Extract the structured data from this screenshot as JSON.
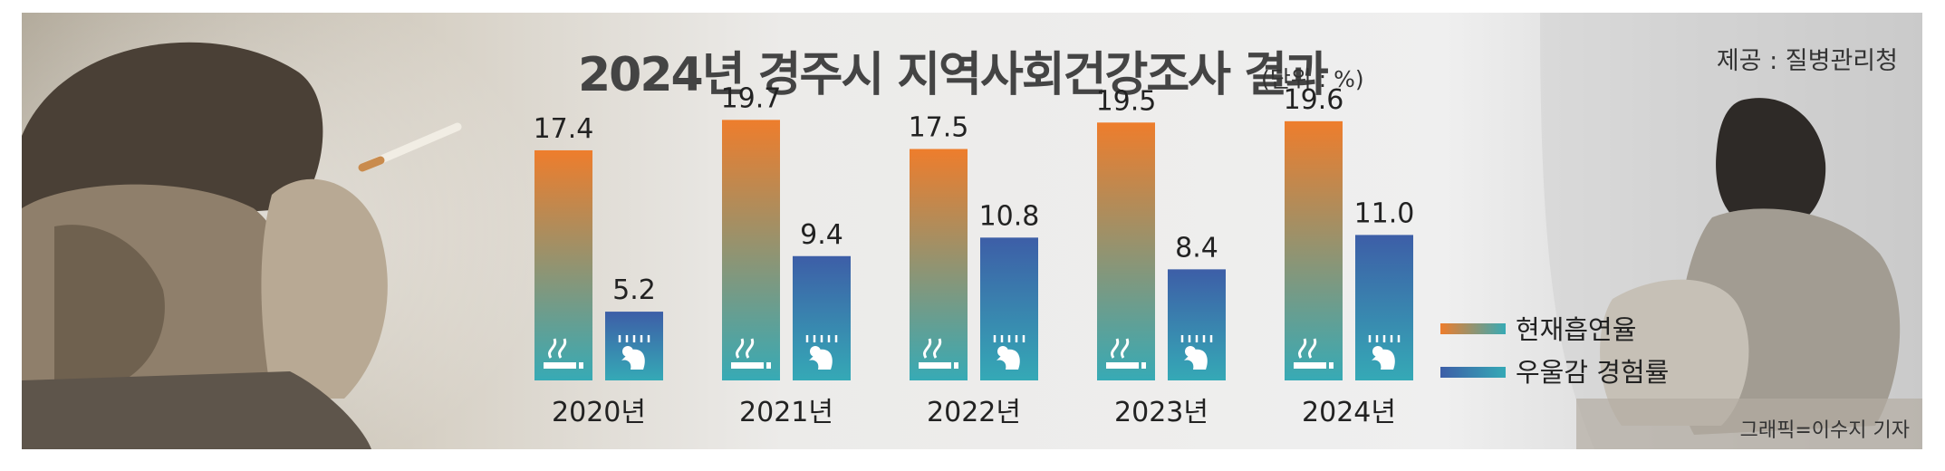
{
  "header": {
    "title": "2024년 경주시 지역사회건강조사 결과",
    "unit": "(단위 : %)",
    "source": "제공 : 질병관리청",
    "credit": "그래픽=이수지 기자"
  },
  "chart_data": {
    "type": "bar",
    "categories": [
      "2020년",
      "2021년",
      "2022년",
      "2023년",
      "2024년"
    ],
    "series": [
      {
        "name": "현재흡연율",
        "values": [
          17.4,
          19.7,
          17.5,
          19.5,
          19.6
        ],
        "labels": [
          "17.4",
          "19.7",
          "17.5",
          "19.5",
          "19.6"
        ],
        "icon": "smoking-icon"
      },
      {
        "name": "우울감 경험률",
        "values": [
          5.2,
          9.4,
          10.8,
          8.4,
          11.0
        ],
        "labels": [
          "5.2",
          "9.4",
          "10.8",
          "8.4",
          "11.0"
        ],
        "icon": "depressed-person-icon"
      }
    ],
    "legend": "right",
    "grid": false,
    "colors": {
      "smoking_top": "#ee7d2c",
      "smoking_bottom": "#37aab5",
      "depression_top": "#3d5ea7",
      "depression_bottom": "#35a9b6"
    }
  }
}
